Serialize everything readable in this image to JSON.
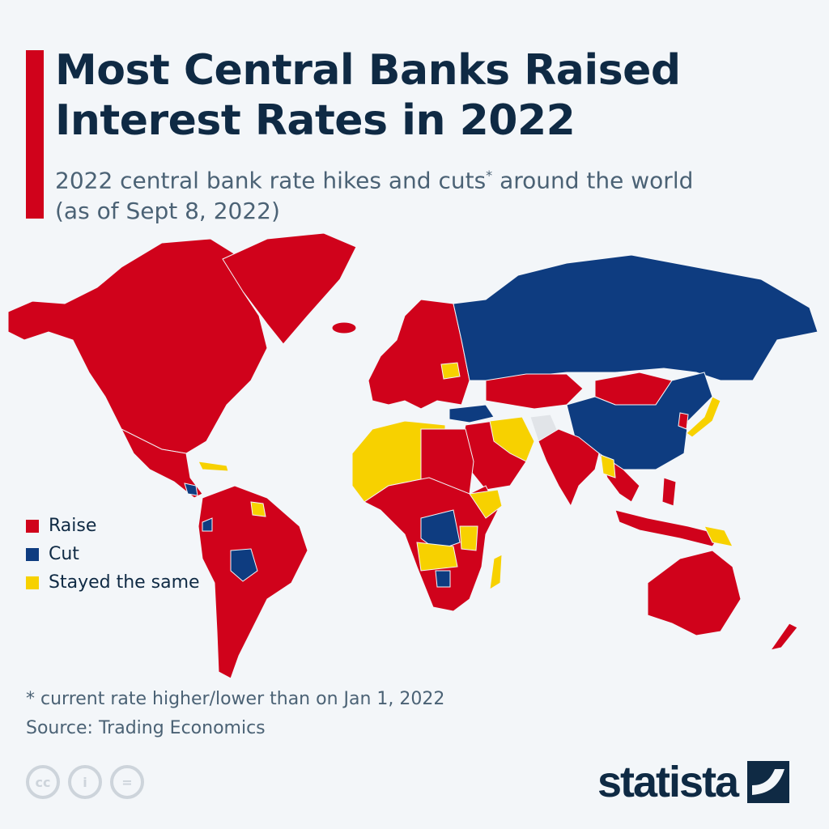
{
  "header": {
    "title": "Most Central Banks Raised Interest Rates in 2022",
    "subtitle_main": "2022 central bank rate hikes and cuts",
    "subtitle_mark": "*",
    "subtitle_rest": " around the world",
    "subtitle_date": "(as of Sept 8, 2022)"
  },
  "legend": [
    {
      "label": "Raise",
      "color": "#d0021b"
    },
    {
      "label": "Cut",
      "color": "#0e3c80"
    },
    {
      "label": "Stayed the same",
      "color": "#f7d100"
    }
  ],
  "footer": {
    "note": "* current rate higher/lower than on Jan 1, 2022",
    "source": "Source: Trading Economics",
    "license_icons": [
      "cc-icon",
      "attribution-icon",
      "no-derivatives-icon"
    ],
    "logo": "statista"
  }
}
